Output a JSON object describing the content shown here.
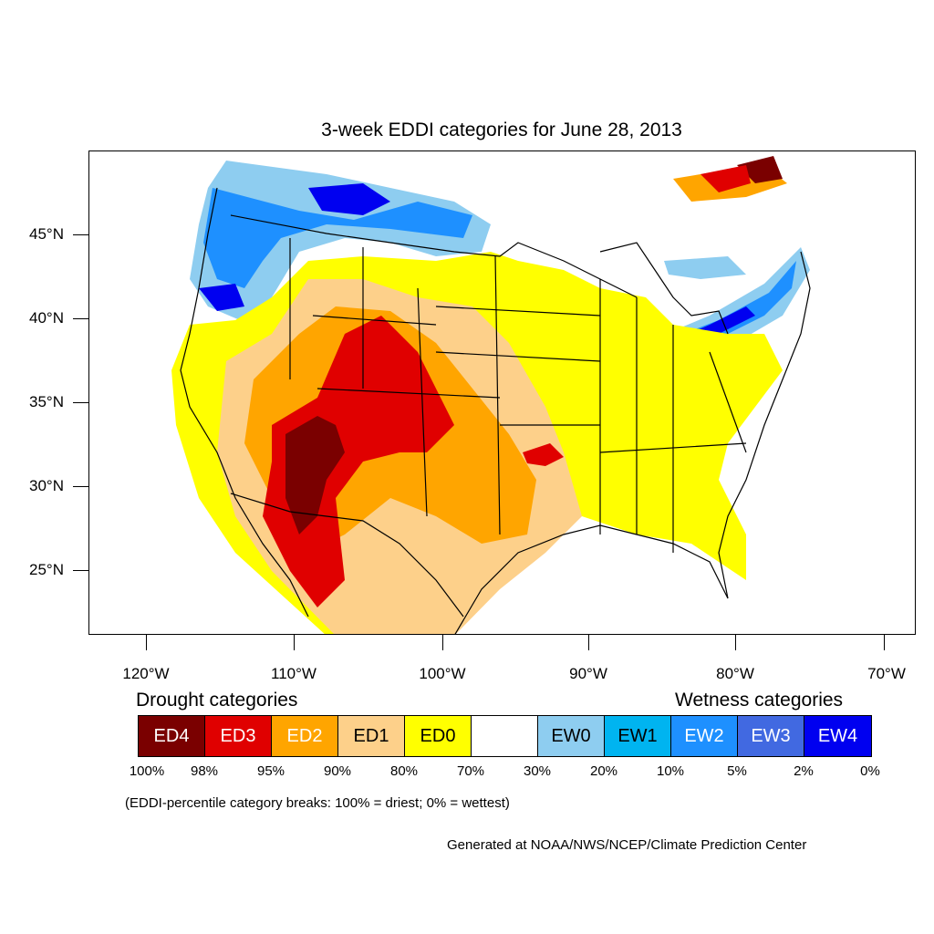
{
  "title": "3-week EDDI categories for June 28, 2013",
  "axes": {
    "lat_labels": [
      "45°N",
      "40°N",
      "35°N",
      "30°N",
      "25°N"
    ],
    "lon_labels": [
      "120°W",
      "110°W",
      "100°W",
      "90°W",
      "80°W",
      "70°W"
    ]
  },
  "legend": {
    "drought_heading": "Drought categories",
    "wetness_heading": "Wetness categories",
    "categories": [
      {
        "label": "ED4",
        "color": "#7a0000",
        "text_color": "#ffffff"
      },
      {
        "label": "ED3",
        "color": "#e00000",
        "text_color": "#ffffff"
      },
      {
        "label": "ED2",
        "color": "#ffa500",
        "text_color": "#ffffff"
      },
      {
        "label": "ED1",
        "color": "#fdd08a",
        "text_color": "#000000"
      },
      {
        "label": "ED0",
        "color": "#ffff00",
        "text_color": "#000000"
      },
      {
        "label": "",
        "color": "#ffffff",
        "text_color": "#000000"
      },
      {
        "label": "EW0",
        "color": "#8ecdf0",
        "text_color": "#000000"
      },
      {
        "label": "EW1",
        "color": "#00b4f0",
        "text_color": "#000000"
      },
      {
        "label": "EW2",
        "color": "#1e90ff",
        "text_color": "#ffffff"
      },
      {
        "label": "EW3",
        "color": "#4169e1",
        "text_color": "#ffffff"
      },
      {
        "label": "EW4",
        "color": "#0000f0",
        "text_color": "#ffffff"
      }
    ],
    "breaks": [
      "100%",
      "98%",
      "95%",
      "90%",
      "80%",
      "70%",
      "30%",
      "20%",
      "10%",
      "5%",
      "2%",
      "0%"
    ]
  },
  "note": "(EDDI-percentile category breaks: 100% = driest; 0% = wettest)",
  "credit": "Generated at NOAA/NWS/NCEP/Climate Prediction Center"
}
